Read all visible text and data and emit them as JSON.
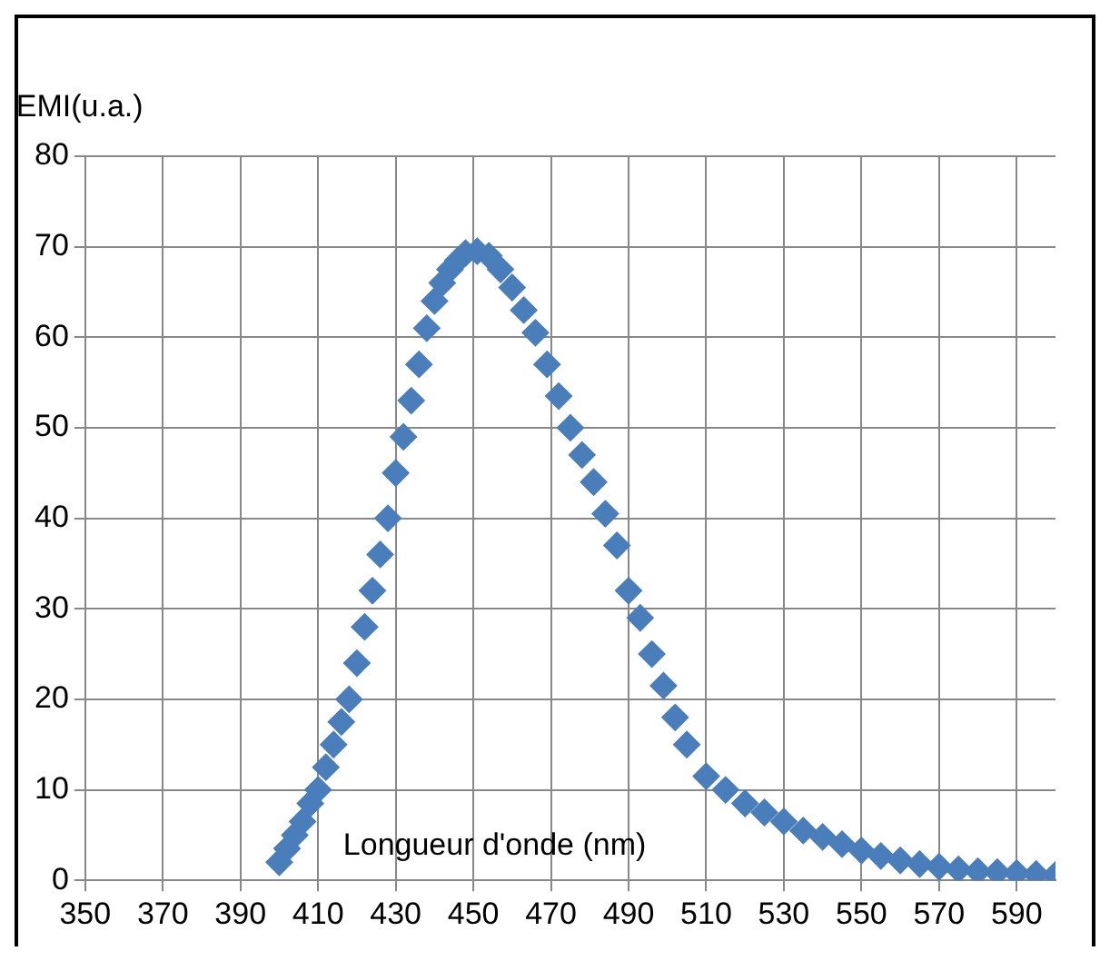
{
  "chart_data": {
    "type": "scatter",
    "ylabel": "EMI(u.a.)",
    "xlabel": "Longueur d'onde (nm)",
    "marker": "diamond",
    "grid": true,
    "xlim": [
      350,
      600
    ],
    "xticks": [
      350,
      370,
      390,
      410,
      430,
      450,
      470,
      490,
      510,
      530,
      550,
      570,
      590
    ],
    "ylim": [
      0,
      80
    ],
    "yticks": [
      0,
      10,
      20,
      30,
      40,
      50,
      60,
      70,
      80
    ],
    "series": [
      {
        "color": "#4a7ebb",
        "x": [
          400,
          402,
          404,
          406,
          408,
          410,
          412,
          414,
          416,
          418,
          420,
          422,
          424,
          426,
          428,
          430,
          432,
          434,
          436,
          438,
          440,
          442,
          444,
          446,
          448,
          451,
          454,
          457,
          460,
          463,
          466,
          469,
          472,
          475,
          478,
          481,
          484,
          487,
          490,
          493,
          496,
          499,
          502,
          505,
          510,
          515,
          520,
          525,
          530,
          535,
          540,
          545,
          550,
          555,
          560,
          565,
          570,
          575,
          580,
          585,
          590,
          595,
          600
        ],
        "values": [
          2,
          3.5,
          5,
          6.5,
          8.5,
          10,
          12.5,
          15,
          17.5,
          20,
          24,
          28,
          32,
          36,
          40,
          45,
          49,
          53,
          57,
          61,
          64,
          66,
          67.5,
          68.5,
          69.3,
          69.5,
          69,
          67.5,
          65.5,
          63,
          60.5,
          57,
          53.5,
          50,
          47,
          44,
          40.5,
          37,
          32,
          29,
          25,
          21.5,
          18,
          15,
          11.5,
          10,
          8.5,
          7.5,
          6.5,
          5.5,
          4.8,
          4,
          3.3,
          2.7,
          2.2,
          1.8,
          1.5,
          1.2,
          1,
          0.9,
          0.8,
          0.7,
          0.6
        ]
      }
    ]
  }
}
